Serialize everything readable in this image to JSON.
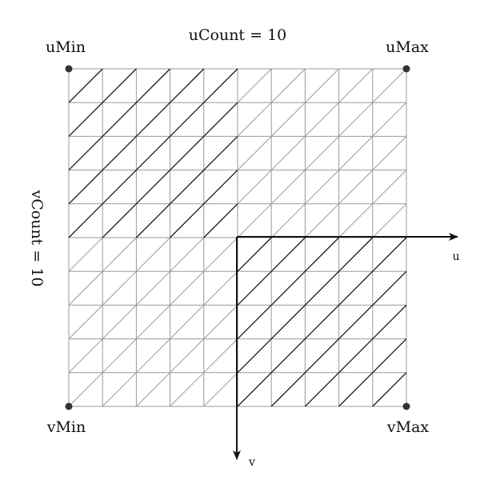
{
  "labels": {
    "u_count": "uCount = 10",
    "v_count": "vCount = 10",
    "u_min": "uMin",
    "u_max": "uMax",
    "v_min": "vMin",
    "v_max": "vMax",
    "u_axis": "u",
    "v_axis": "v"
  },
  "grid": {
    "u_count": 10,
    "v_count": 10
  },
  "colors": {
    "line_light": "#9a9a9a",
    "line_dark": "#1a1a1a",
    "corner_dot": "#333333",
    "axis": "#111111"
  }
}
